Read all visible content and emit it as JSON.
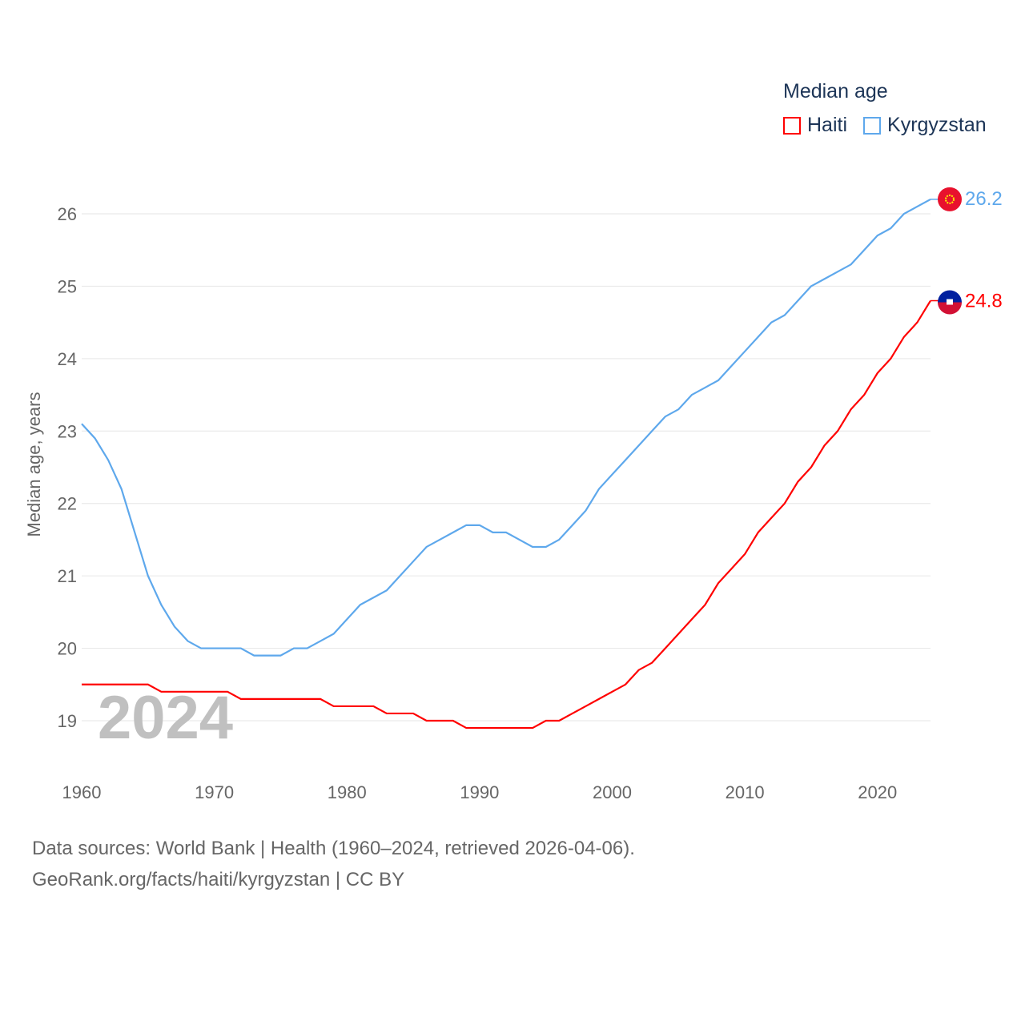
{
  "chart_data": {
    "type": "line",
    "title": "Median age",
    "ylabel": "Median age, years",
    "xlabel": "",
    "year_watermark": "2024",
    "ylim": [
      18.4,
      26.5
    ],
    "xlim": [
      1960,
      2024
    ],
    "yticks": [
      19,
      20,
      21,
      22,
      23,
      24,
      25,
      26
    ],
    "xticks": [
      1960,
      1970,
      1980,
      1990,
      2000,
      2010,
      2020
    ],
    "grid": true,
    "legend_placement": "top-right",
    "x": [
      1960,
      1961,
      1962,
      1963,
      1964,
      1965,
      1966,
      1967,
      1968,
      1969,
      1970,
      1971,
      1972,
      1973,
      1974,
      1975,
      1976,
      1977,
      1978,
      1979,
      1980,
      1981,
      1982,
      1983,
      1984,
      1985,
      1986,
      1987,
      1988,
      1989,
      1990,
      1991,
      1992,
      1993,
      1994,
      1995,
      1996,
      1997,
      1998,
      1999,
      2000,
      2001,
      2002,
      2003,
      2004,
      2005,
      2006,
      2007,
      2008,
      2009,
      2010,
      2011,
      2012,
      2013,
      2014,
      2015,
      2016,
      2017,
      2018,
      2019,
      2020,
      2021,
      2022,
      2023,
      2024
    ],
    "series": [
      {
        "name": "Haiti",
        "color": "#ff0000",
        "end_label": "24.8",
        "values": [
          19.5,
          19.5,
          19.5,
          19.5,
          19.5,
          19.5,
          19.4,
          19.4,
          19.4,
          19.4,
          19.4,
          19.4,
          19.3,
          19.3,
          19.3,
          19.3,
          19.3,
          19.3,
          19.3,
          19.2,
          19.2,
          19.2,
          19.2,
          19.1,
          19.1,
          19.1,
          19.0,
          19.0,
          19.0,
          18.9,
          18.9,
          18.9,
          18.9,
          18.9,
          18.9,
          19.0,
          19.0,
          19.1,
          19.2,
          19.3,
          19.4,
          19.5,
          19.7,
          19.8,
          20.0,
          20.2,
          20.4,
          20.6,
          20.9,
          21.1,
          21.3,
          21.6,
          21.8,
          22.0,
          22.3,
          22.5,
          22.8,
          23.0,
          23.3,
          23.5,
          23.8,
          24.0,
          24.3,
          24.5,
          24.8
        ]
      },
      {
        "name": "Kyrgyzstan",
        "color": "#5ea8ec",
        "end_label": "26.2",
        "values": [
          23.1,
          22.9,
          22.6,
          22.2,
          21.6,
          21.0,
          20.6,
          20.3,
          20.1,
          20.0,
          20.0,
          20.0,
          20.0,
          19.9,
          19.9,
          19.9,
          20.0,
          20.0,
          20.1,
          20.2,
          20.4,
          20.6,
          20.7,
          20.8,
          21.0,
          21.2,
          21.4,
          21.5,
          21.6,
          21.7,
          21.7,
          21.6,
          21.6,
          21.5,
          21.4,
          21.4,
          21.5,
          21.7,
          21.9,
          22.2,
          22.4,
          22.6,
          22.8,
          23.0,
          23.2,
          23.3,
          23.5,
          23.6,
          23.7,
          23.9,
          24.1,
          24.3,
          24.5,
          24.6,
          24.8,
          25.0,
          25.1,
          25.2,
          25.3,
          25.5,
          25.7,
          25.8,
          26.0,
          26.1,
          26.2
        ]
      }
    ]
  },
  "footer": {
    "line1": "Data sources: World Bank | Health (1960–2024, retrieved 2026-04-06).",
    "line2": "GeoRank.org/facts/haiti/kyrgyzstan | CC BY"
  }
}
